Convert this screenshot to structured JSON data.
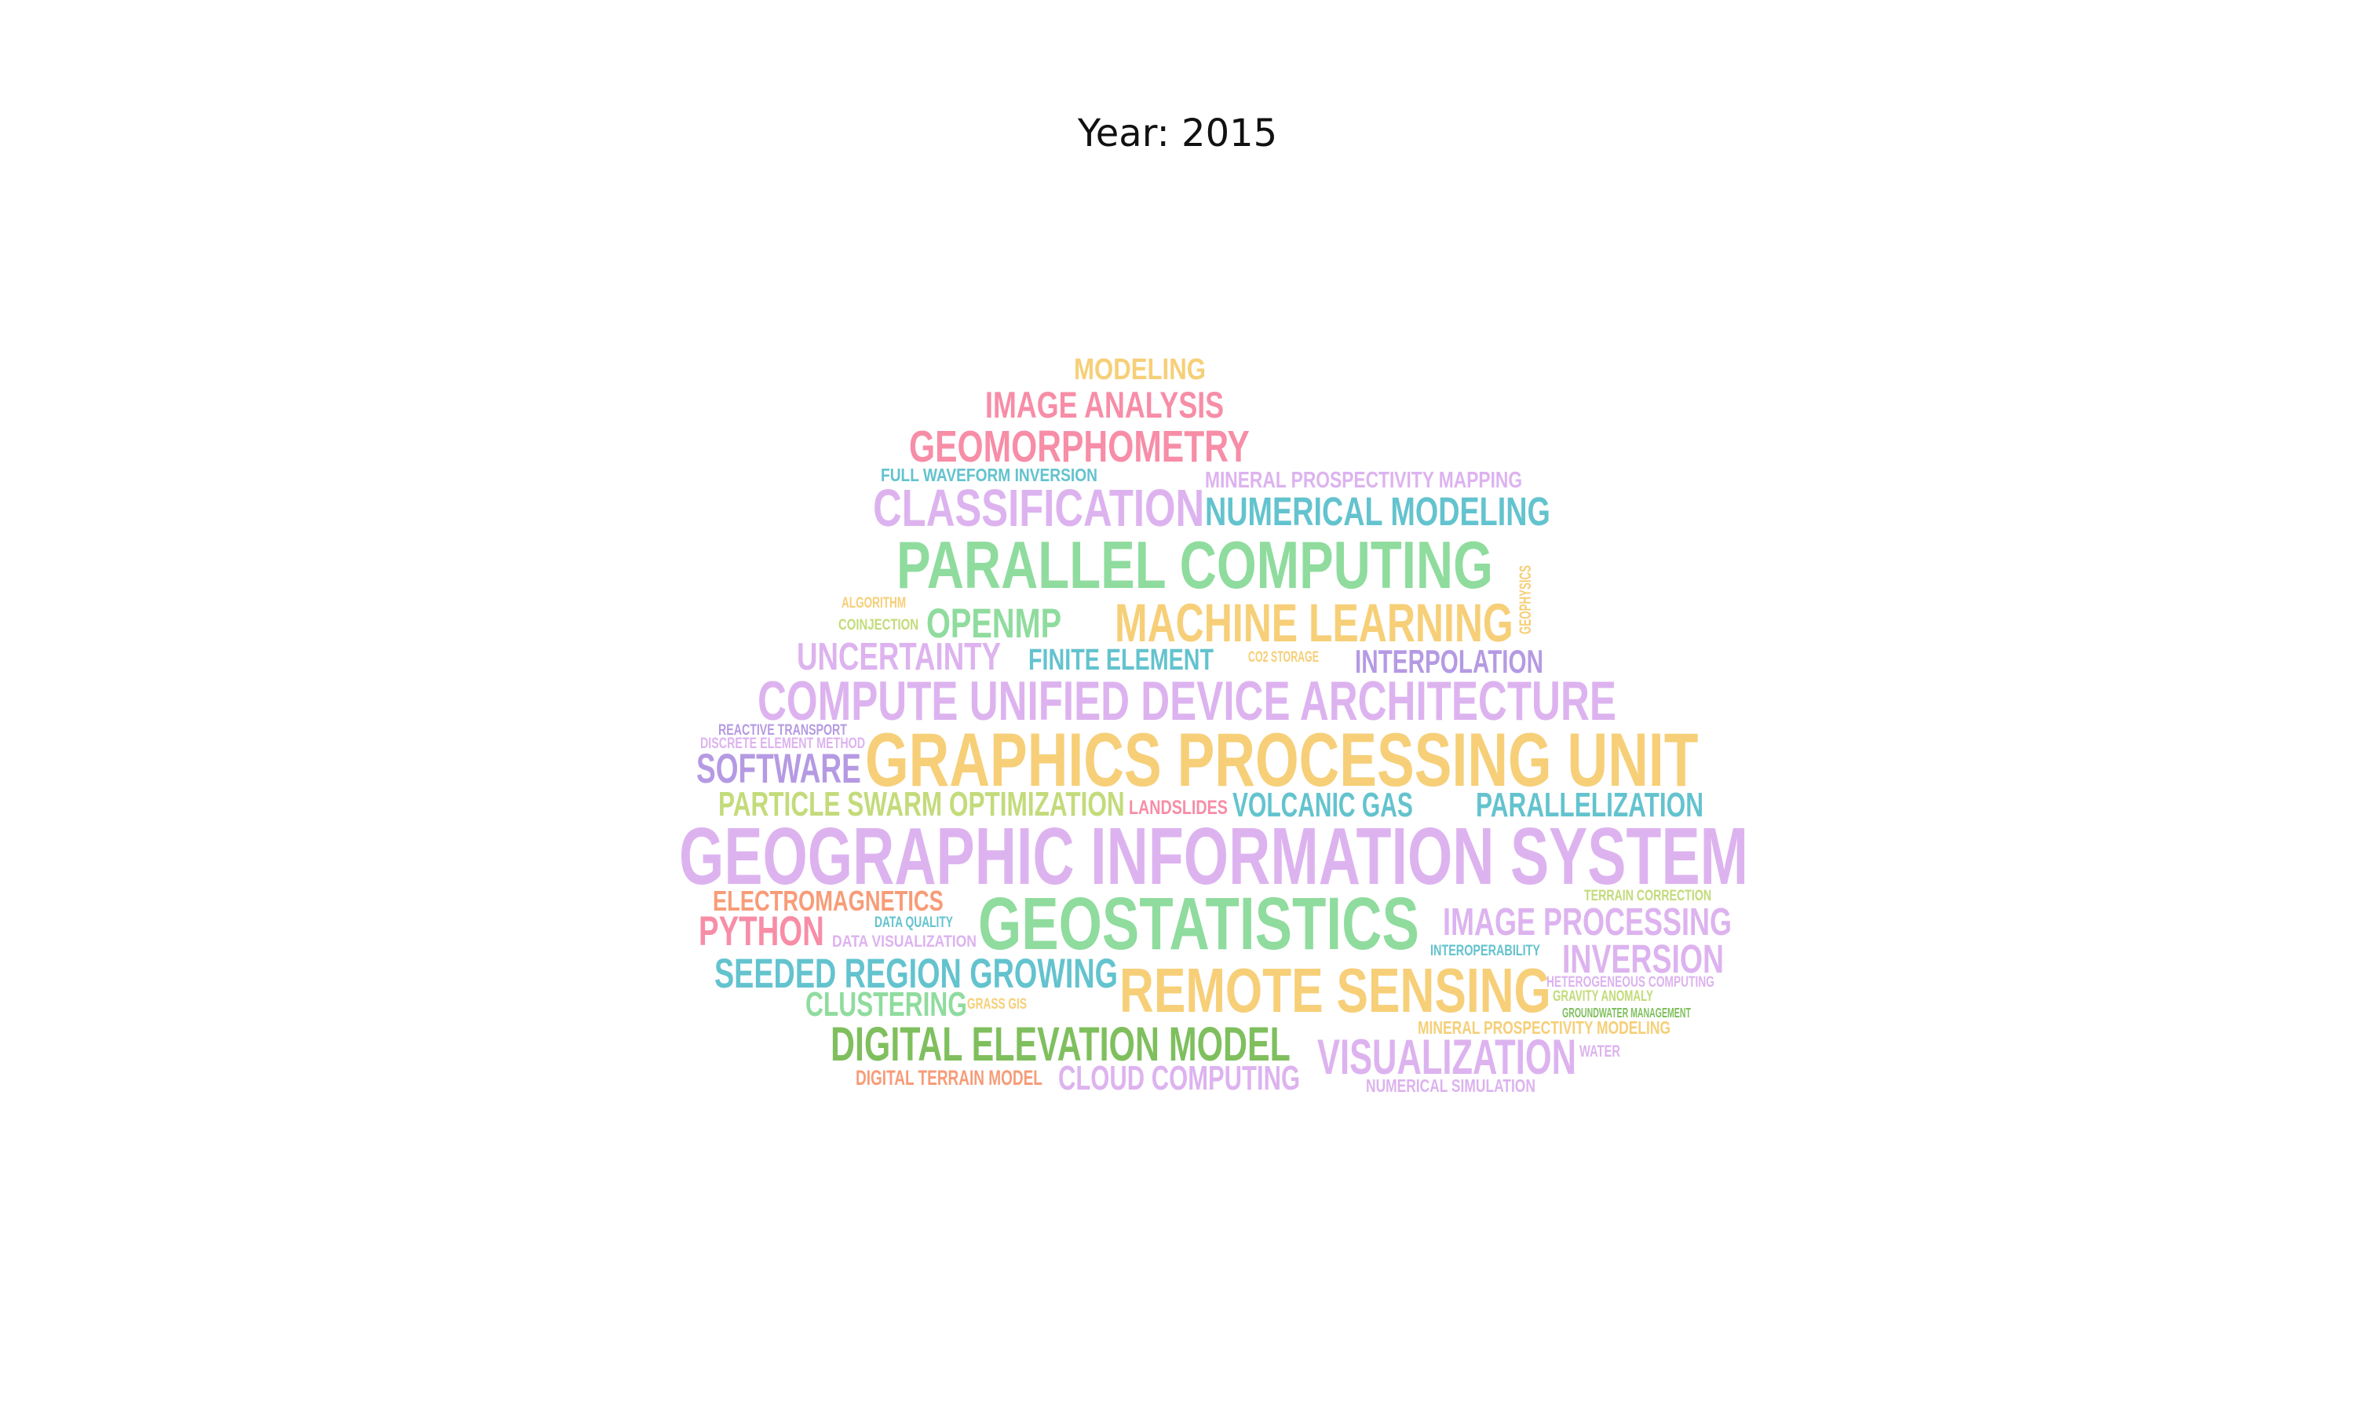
{
  "title": "Year: 2015",
  "palette": {
    "green": "#8fdc9e",
    "yellow": "#f6cf78",
    "lavender": "#ddb3ef",
    "pink": "#f78da7",
    "teal": "#63c3ce",
    "purple": "#b59ae3",
    "lime": "#c3db7a",
    "salmon": "#f79c78",
    "olive": "#7fbf5e"
  },
  "words": [
    {
      "text": "MODELING",
      "color": "yellow"
    },
    {
      "text": "IMAGE ANALYSIS",
      "color": "pink"
    },
    {
      "text": "GEOMORPHOMETRY",
      "color": "pink"
    },
    {
      "text": "FULL WAVEFORM INVERSION",
      "color": "teal"
    },
    {
      "text": "MINERAL PROSPECTIVITY MAPPING",
      "color": "lavender"
    },
    {
      "text": "CLASSIFICATION",
      "color": "lavender"
    },
    {
      "text": "NUMERICAL MODELING",
      "color": "teal"
    },
    {
      "text": "PARALLEL COMPUTING",
      "color": "green"
    },
    {
      "text": "ALGORITHM",
      "color": "yellow"
    },
    {
      "text": "COINJECTION",
      "color": "lime"
    },
    {
      "text": "OPENMP",
      "color": "green"
    },
    {
      "text": "MACHINE LEARNING",
      "color": "yellow"
    },
    {
      "text": "GEOPHYSICS",
      "color": "yellow"
    },
    {
      "text": "UNCERTAINTY",
      "color": "lavender"
    },
    {
      "text": "FINITE ELEMENT",
      "color": "teal"
    },
    {
      "text": "CO2 STORAGE",
      "color": "yellow"
    },
    {
      "text": "INTERPOLATION",
      "color": "purple"
    },
    {
      "text": "COMPUTE UNIFIED DEVICE ARCHITECTURE",
      "color": "lavender"
    },
    {
      "text": "REACTIVE TRANSPORT",
      "color": "purple"
    },
    {
      "text": "DISCRETE ELEMENT METHOD",
      "color": "lavender"
    },
    {
      "text": "GRAPHICS PROCESSING UNIT",
      "color": "yellow"
    },
    {
      "text": "SOFTWARE",
      "color": "purple"
    },
    {
      "text": "PARTICLE SWARM OPTIMIZATION",
      "color": "lime"
    },
    {
      "text": "LANDSLIDES",
      "color": "pink"
    },
    {
      "text": "VOLCANIC GAS",
      "color": "teal"
    },
    {
      "text": "PARALLELIZATION",
      "color": "teal"
    },
    {
      "text": "GEOGRAPHIC INFORMATION SYSTEM",
      "color": "lavender"
    },
    {
      "text": "ELECTROMAGNETICS",
      "color": "salmon"
    },
    {
      "text": "TERRAIN CORRECTION",
      "color": "lime"
    },
    {
      "text": "PYTHON",
      "color": "pink"
    },
    {
      "text": "DATA QUALITY",
      "color": "teal"
    },
    {
      "text": "GEOSTATISTICS",
      "color": "green"
    },
    {
      "text": "IMAGE PROCESSING",
      "color": "lavender"
    },
    {
      "text": "DATA VISUALIZATION",
      "color": "lavender"
    },
    {
      "text": "INTEROPERABILITY",
      "color": "teal"
    },
    {
      "text": "INVERSION",
      "color": "lavender"
    },
    {
      "text": "SEEDED REGION GROWING",
      "color": "teal"
    },
    {
      "text": "REMOTE SENSING",
      "color": "yellow"
    },
    {
      "text": "HETEROGENEOUS COMPUTING",
      "color": "lavender"
    },
    {
      "text": "GRAVITY ANOMALY",
      "color": "lime"
    },
    {
      "text": "CLUSTERING",
      "color": "green"
    },
    {
      "text": "GRASS GIS",
      "color": "yellow"
    },
    {
      "text": "GROUNDWATER MANAGEMENT",
      "color": "olive"
    },
    {
      "text": "MINERAL PROSPECTIVITY MODELING",
      "color": "yellow"
    },
    {
      "text": "DIGITAL ELEVATION MODEL",
      "color": "olive"
    },
    {
      "text": "VISUALIZATION",
      "color": "lavender"
    },
    {
      "text": "WATER",
      "color": "lavender"
    },
    {
      "text": "DIGITAL TERRAIN MODEL",
      "color": "salmon"
    },
    {
      "text": "CLOUD COMPUTING",
      "color": "lavender"
    },
    {
      "text": "NUMERICAL SIMULATION",
      "color": "lavender"
    }
  ]
}
